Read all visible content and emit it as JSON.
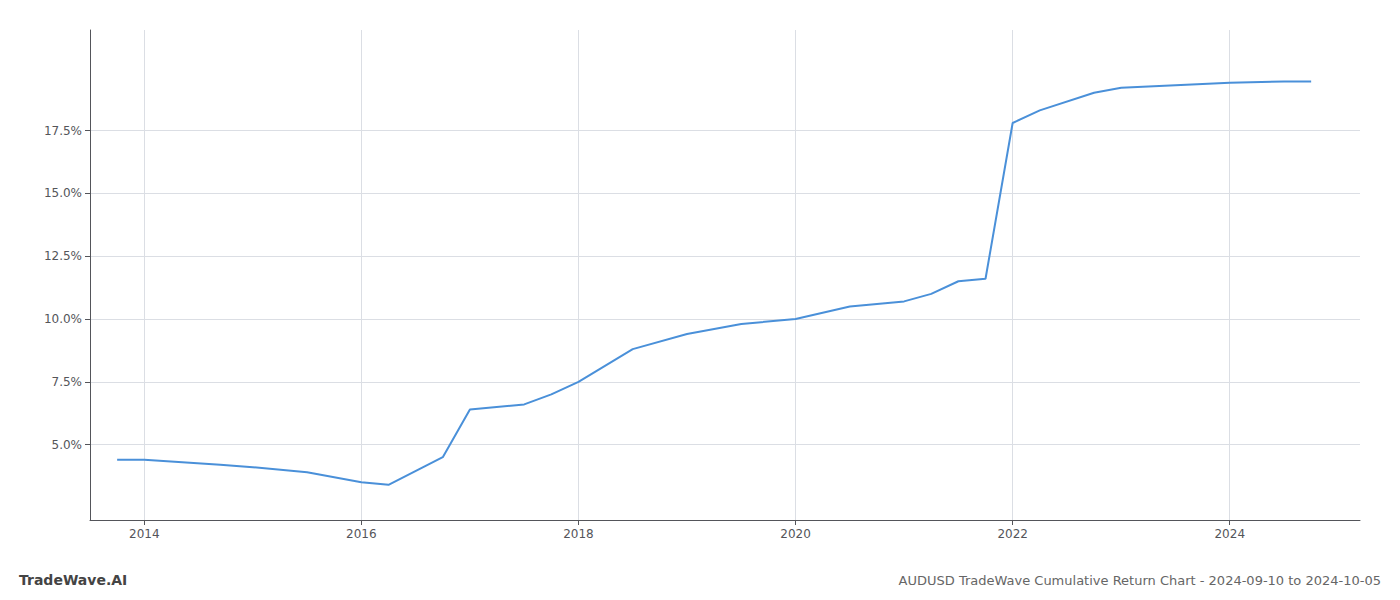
{
  "chart_data": {
    "type": "line",
    "title": "AUDUSD TradeWave Cumulative Return Chart - 2024-09-10 to 2024-10-05",
    "annotations": [
      "TradeWave.AI"
    ],
    "x": [
      2013.75,
      2014.0,
      2014.7,
      2015.0,
      2015.5,
      2016.0,
      2016.25,
      2016.75,
      2017.0,
      2017.5,
      2017.75,
      2018.0,
      2018.5,
      2019.0,
      2019.5,
      2020.0,
      2020.5,
      2020.75,
      2021.0,
      2021.25,
      2021.5,
      2021.75,
      2022.0,
      2022.25,
      2022.75,
      2023.0,
      2023.5,
      2024.0,
      2024.5,
      2024.75
    ],
    "values": [
      4.4,
      4.4,
      4.2,
      4.1,
      3.9,
      3.5,
      3.4,
      4.5,
      6.4,
      6.6,
      7.0,
      7.5,
      8.8,
      9.4,
      9.8,
      10.0,
      10.5,
      10.6,
      10.7,
      11.0,
      11.5,
      11.6,
      17.8,
      18.3,
      19.0,
      19.2,
      19.3,
      19.4,
      19.45,
      19.45
    ],
    "color": "#4a90d9",
    "xlim": [
      2013.5,
      2025.2
    ],
    "xticks": [
      2014,
      2016,
      2018,
      2020,
      2022,
      2024
    ],
    "ylim": [
      2.0,
      21.5
    ],
    "yticks": [
      {
        "value": 5.0,
        "label": "5.0%"
      },
      {
        "value": 7.5,
        "label": "7.5%"
      },
      {
        "value": 10.0,
        "label": "10.0%"
      },
      {
        "value": 12.5,
        "label": "12.5%"
      },
      {
        "value": 15.0,
        "label": "15.0%"
      },
      {
        "value": 17.5,
        "label": "17.5%"
      }
    ],
    "grid": true
  }
}
